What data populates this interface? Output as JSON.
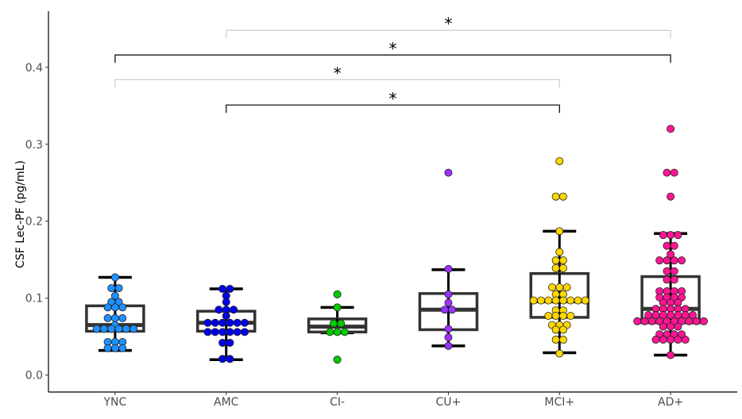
{
  "chart_data": {
    "type": "box",
    "title": "",
    "xlabel": "",
    "ylabel": "CSF Lec-PF (pg/mL)",
    "ylim": [
      -0.022,
      0.473
    ],
    "yticks": [
      0.0,
      0.1,
      0.2,
      0.3,
      0.4
    ],
    "ytick_labels": [
      "0.0",
      "0.1",
      "0.2",
      "0.3",
      "0.4"
    ],
    "grid": false,
    "categories": [
      "YNC",
      "AMC",
      "CI-",
      "CU+",
      "MCI+",
      "AD+"
    ],
    "groups": [
      {
        "name": "YNC",
        "color": "#1E90FF",
        "box": {
          "whisker_low": 0.032,
          "q1": 0.057,
          "median": 0.065,
          "q3": 0.09,
          "whisker_high": 0.127
        },
        "points": [
          0.127,
          0.113,
          0.113,
          0.103,
          0.095,
          0.095,
          0.088,
          0.088,
          0.088,
          0.074,
          0.074,
          0.074,
          0.065,
          0.06,
          0.06,
          0.06,
          0.06,
          0.06,
          0.06,
          0.043,
          0.043,
          0.043,
          0.035,
          0.035,
          0.035
        ]
      },
      {
        "name": "AMC",
        "color": "#0000EE",
        "box": {
          "whisker_low": 0.02,
          "q1": 0.057,
          "median": 0.068,
          "q3": 0.083,
          "whisker_high": 0.112
        },
        "points": [
          0.112,
          0.112,
          0.103,
          0.095,
          0.085,
          0.085,
          0.085,
          0.077,
          0.068,
          0.068,
          0.068,
          0.068,
          0.068,
          0.068,
          0.056,
          0.056,
          0.056,
          0.056,
          0.056,
          0.056,
          0.042,
          0.042,
          0.021,
          0.021
        ]
      },
      {
        "name": "CI-",
        "color": "#00CC00",
        "box": {
          "whisker_low": 0.055,
          "q1": 0.056,
          "median": 0.063,
          "q3": 0.073,
          "whisker_high": 0.088
        },
        "points": [
          0.105,
          0.088,
          0.067,
          0.067,
          0.056,
          0.056,
          0.056,
          0.02
        ]
      },
      {
        "name": "CU+",
        "color": "#9B30FF",
        "box": {
          "whisker_low": 0.038,
          "q1": 0.059,
          "median": 0.085,
          "q3": 0.106,
          "whisker_high": 0.137
        },
        "points": [
          0.263,
          0.138,
          0.105,
          0.094,
          0.085,
          0.085,
          0.06,
          0.049,
          0.038
        ]
      },
      {
        "name": "MCI+",
        "color": "#FFD700",
        "box": {
          "whisker_low": 0.029,
          "q1": 0.075,
          "median": 0.096,
          "q3": 0.132,
          "whisker_high": 0.187
        },
        "points": [
          0.278,
          0.232,
          0.232,
          0.187,
          0.16,
          0.149,
          0.149,
          0.139,
          0.139,
          0.114,
          0.114,
          0.114,
          0.105,
          0.105,
          0.097,
          0.097,
          0.097,
          0.097,
          0.097,
          0.097,
          0.097,
          0.097,
          0.084,
          0.084,
          0.077,
          0.077,
          0.077,
          0.077,
          0.065,
          0.065,
          0.065,
          0.059,
          0.059,
          0.046,
          0.046,
          0.028
        ]
      },
      {
        "name": "AD+",
        "color": "#FF1493",
        "box": {
          "whisker_low": 0.026,
          "q1": 0.068,
          "median": 0.086,
          "q3": 0.128,
          "whisker_high": 0.184
        },
        "points": [
          0.32,
          0.263,
          0.263,
          0.232,
          0.182,
          0.182,
          0.182,
          0.168,
          0.168,
          0.157,
          0.149,
          0.149,
          0.149,
          0.149,
          0.135,
          0.135,
          0.124,
          0.124,
          0.109,
          0.109,
          0.109,
          0.109,
          0.101,
          0.101,
          0.101,
          0.101,
          0.094,
          0.094,
          0.094,
          0.086,
          0.086,
          0.086,
          0.086,
          0.086,
          0.078,
          0.078,
          0.078,
          0.078,
          0.078,
          0.078,
          0.078,
          0.07,
          0.07,
          0.07,
          0.07,
          0.07,
          0.07,
          0.07,
          0.07,
          0.07,
          0.07,
          0.063,
          0.063,
          0.063,
          0.053,
          0.053,
          0.053,
          0.053,
          0.046,
          0.046,
          0.046,
          0.046,
          0.046,
          0.026
        ]
      }
    ],
    "significance": [
      {
        "from": "AMC",
        "to": "AD+",
        "y": 0.448,
        "label": "*",
        "color": "#cccccc"
      },
      {
        "from": "YNC",
        "to": "AD+",
        "y": 0.416,
        "label": "*",
        "color": "#000000"
      },
      {
        "from": "YNC",
        "to": "MCI+",
        "y": 0.384,
        "label": "*",
        "color": "#cccccc"
      },
      {
        "from": "AMC",
        "to": "MCI+",
        "y": 0.351,
        "label": "*",
        "color": "#000000"
      }
    ]
  }
}
